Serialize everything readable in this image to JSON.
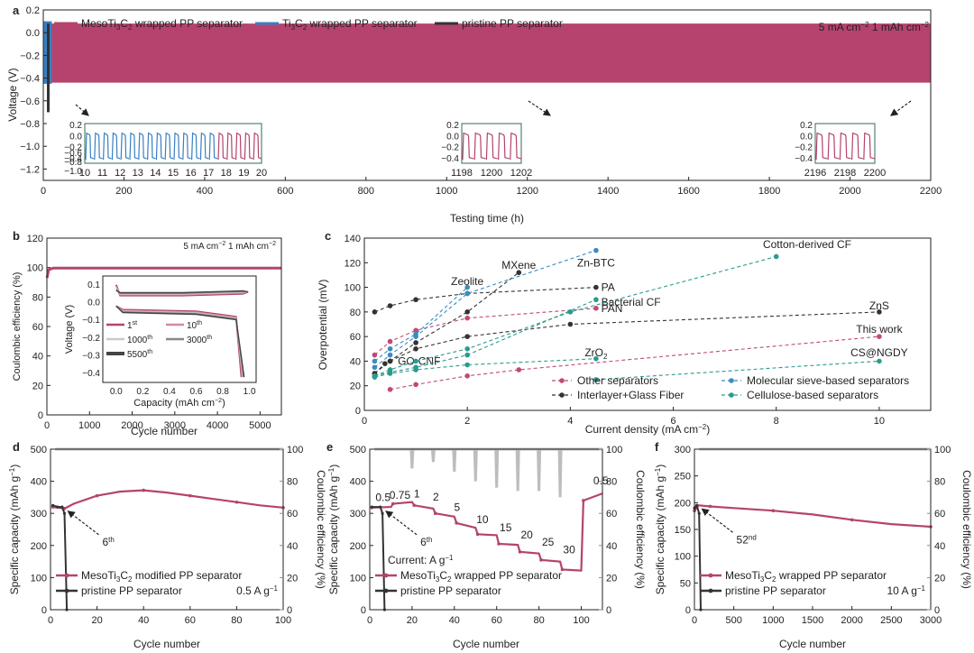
{
  "chart_data": [
    {
      "panel": "a",
      "type": "line",
      "xlabel": "Testing time (h)",
      "ylabel": "Voltage (V)",
      "xlim": [
        0,
        2200
      ],
      "ylim": [
        -1.3,
        0.2
      ],
      "xticks": [
        "0",
        "200",
        "400",
        "600",
        "800",
        "1000",
        "1200",
        "1400",
        "1600",
        "1800",
        "2000",
        "2200"
      ],
      "yticks": [
        "-1.2",
        "-1.0",
        "-0.8",
        "-0.6",
        "-0.4",
        "-0.2",
        "0.0",
        "0.2"
      ],
      "legend": [
        "MesoTi3C2 wrapped  PP separator",
        "Ti3C2 wrapped  PP separator",
        "pristine PP separator"
      ],
      "condition": "5 mA cm-2  1 mAh cm-2",
      "series": [
        {
          "name": "MesoTi3C2 wrapped  PP separator",
          "color": "#b5436e",
          "x_range": [
            20,
            2200
          ],
          "upper": 0.08,
          "lower": -0.44
        },
        {
          "name": "Ti3C2 wrapped  PP separator",
          "color": "#3a7fc1",
          "x_range": [
            0,
            20
          ],
          "upper": 0.1,
          "lower": -0.45
        },
        {
          "name": "pristine PP separator",
          "color": "#333333",
          "x_range": [
            0,
            10
          ],
          "upper": 0.08,
          "lower": -0.7
        }
      ],
      "insets": [
        {
          "xticks": [
            "10",
            "11",
            "12",
            "13",
            "14",
            "15",
            "16",
            "17",
            "18",
            "19",
            "20"
          ],
          "yticks": [
            "0.2",
            "0.0",
            "-0.2",
            "-0.4",
            "-0.6",
            "-0.8",
            "-1.0"
          ],
          "xlim": [
            10,
            20
          ],
          "blue_until": 17.5,
          "cycles": 20
        },
        {
          "xticks": [
            "1198",
            "1200",
            "1202"
          ],
          "yticks": [
            "0.2",
            "0.0",
            "-0.2",
            "-0.4"
          ],
          "xlim": [
            1197.5,
            1202
          ],
          "cycles": 5
        },
        {
          "xticks": [
            "2196",
            "2198",
            "2200"
          ],
          "yticks": [
            "0.2",
            "0.0",
            "-0.2",
            "-0.4"
          ],
          "xlim": [
            2195.5,
            2200
          ],
          "cycles": 5
        }
      ]
    },
    {
      "panel": "b",
      "type": "scatter",
      "xlabel": "Cycle number",
      "ylabel": "Coulombic efficiency (%)",
      "xlim": [
        0,
        5500
      ],
      "ylim": [
        0,
        120
      ],
      "xticks": [
        "0",
        "1000",
        "2000",
        "3000",
        "4000",
        "5000"
      ],
      "yticks": [
        "0",
        "20",
        "40",
        "60",
        "80",
        "100",
        "120"
      ],
      "condition": "5 mA cm-2 1 mAh cm-2",
      "values": {
        "ce": 99.7
      },
      "inset": {
        "xlabel": "Capacity (mAh cm-2)",
        "ylabel": "Voltage (V)",
        "xticks": [
          "0.0",
          "0.2",
          "0.4",
          "0.6",
          "0.8",
          "1.0"
        ],
        "yticks": [
          "0.1",
          "0.0",
          "-0.1",
          "-0.2",
          "-0.3",
          "-0.4"
        ],
        "legend": [
          "1st",
          "10th",
          "1000th",
          "3000th",
          "5500th"
        ],
        "legend_colors": [
          "#b5436e",
          "#d58aa4",
          "#c9c9c9",
          "#888888",
          "#444444"
        ]
      }
    },
    {
      "panel": "c",
      "type": "scatter",
      "xlabel": "Current density (mA cm-2)",
      "ylabel": "Overpotential (mV)",
      "xlim": [
        0,
        11
      ],
      "ylim": [
        0,
        140
      ],
      "xticks": [
        "0",
        "2",
        "4",
        "6",
        "8",
        "10"
      ],
      "yticks": [
        "0",
        "20",
        "40",
        "60",
        "80",
        "100",
        "120",
        "140"
      ],
      "legend": [
        "Other separators",
        "Interlayer+Glass Fiber",
        "Molecular sieve-based separators",
        "Cellulose-based separators"
      ],
      "series": [
        {
          "group": "Other separators",
          "label": "PAN",
          "color": "#c04a74",
          "x": [
            0.2,
            0.5,
            1,
            2,
            4.5
          ],
          "y": [
            45,
            56,
            65,
            75,
            83
          ]
        },
        {
          "group": "Other separators",
          "label": "This work",
          "color": "#c04a74",
          "x": [
            0.5,
            1,
            2,
            3,
            10
          ],
          "y": [
            17,
            21,
            28,
            33,
            60
          ]
        },
        {
          "group": "Interlayer+Glass Fiber",
          "label": "MXene",
          "color": "#333333",
          "x": [
            0.2,
            0.5,
            1,
            2,
            3
          ],
          "y": [
            30,
            40,
            55,
            80,
            112
          ]
        },
        {
          "group": "Interlayer+Glass Fiber",
          "label": "PA",
          "color": "#333333",
          "x": [
            0.2,
            0.5,
            1,
            2,
            4.5
          ],
          "y": [
            80,
            85,
            90,
            95,
            100
          ]
        },
        {
          "group": "Interlayer+Glass Fiber",
          "label": "GO-CNF",
          "color": "#333333",
          "x": [
            0.2,
            0.4,
            0.5
          ],
          "y": [
            30,
            38,
            40
          ]
        },
        {
          "group": "Interlayer+Glass Fiber",
          "label": "ZnS",
          "color": "#333333",
          "x": [
            0.5,
            1,
            2,
            4,
            10
          ],
          "y": [
            40,
            50,
            60,
            70,
            80
          ]
        },
        {
          "group": "Molecular sieve-based separators",
          "label": "Zeolite",
          "color": "#3a8cc0",
          "x": [
            0.2,
            0.5,
            1,
            2
          ],
          "y": [
            40,
            50,
            62,
            100
          ]
        },
        {
          "group": "Molecular sieve-based separators",
          "label": "Zn-BTC",
          "color": "#3a8cc0",
          "x": [
            0.2,
            0.5,
            1,
            2,
            4.5
          ],
          "y": [
            35,
            45,
            60,
            95,
            130
          ]
        },
        {
          "group": "Cellulose-based separators",
          "label": "Cotton-derived CF",
          "color": "#2a9a8e",
          "x": [
            0.2,
            0.5,
            1,
            2,
            4,
            8
          ],
          "y": [
            28,
            33,
            40,
            50,
            80,
            125
          ]
        },
        {
          "group": "Cellulose-based separators",
          "label": "Bacterial CF",
          "color": "#2a9a8e",
          "x": [
            0.2,
            0.5,
            1,
            2,
            4.5
          ],
          "y": [
            28,
            31,
            35,
            45,
            90
          ]
        },
        {
          "group": "Cellulose-based separators",
          "label": "ZrO2",
          "color": "#2a9a8e",
          "x": [
            0.2,
            0.5,
            1,
            2,
            4.5
          ],
          "y": [
            27,
            30,
            33,
            37,
            42
          ]
        },
        {
          "group": "Cellulose-based separators",
          "label": "CS@NGDY",
          "color": "#2a9a8e",
          "x": [
            4.5,
            10
          ],
          "y": [
            25,
            40
          ]
        }
      ]
    },
    {
      "panel": "d",
      "type": "line",
      "xlabel": "Cycle number",
      "ylabel": "Specific capacity (mAh g-1)",
      "y2label": "Coulombic efficiency (%)",
      "xlim": [
        0,
        100
      ],
      "ylim": [
        0,
        500
      ],
      "y2lim": [
        0,
        100
      ],
      "xticks": [
        "0",
        "20",
        "40",
        "60",
        "80",
        "100"
      ],
      "yticks": [
        "0",
        "100",
        "200",
        "300",
        "400",
        "500"
      ],
      "y2ticks": [
        "0",
        "20",
        "40",
        "60",
        "80",
        "100"
      ],
      "annotation": "6th",
      "rate_label": "0.5 A g-1",
      "legend": [
        "MesoTi3C2 modified PP separator",
        "pristine PP separator"
      ],
      "series": [
        {
          "name": "MesoTi3C2 modified PP separator",
          "color": "#b5436e",
          "x": [
            1,
            3,
            6,
            10,
            20,
            30,
            40,
            50,
            60,
            70,
            80,
            90,
            100
          ],
          "y": [
            320,
            318,
            315,
            330,
            355,
            368,
            372,
            365,
            355,
            345,
            335,
            325,
            318
          ]
        },
        {
          "name": "pristine PP separator",
          "color": "#333333",
          "x": [
            1,
            3,
            5,
            6,
            7
          ],
          "y": [
            325,
            320,
            320,
            300,
            0
          ]
        },
        {
          "name": "Coulombic efficiency",
          "color": "#bdbdbd",
          "axis": "y2",
          "x": [
            1,
            100
          ],
          "y": [
            100,
            100
          ]
        }
      ]
    },
    {
      "panel": "e",
      "type": "line",
      "xlabel": "Cycle number",
      "ylabel": "Specific capacity (mAh g-1)",
      "y2label": "Coulombic efficiency (%)",
      "xlim": [
        0,
        110
      ],
      "ylim": [
        0,
        500
      ],
      "y2lim": [
        0,
        100
      ],
      "xticks": [
        "0",
        "20",
        "40",
        "60",
        "80",
        "100"
      ],
      "yticks": [
        "0",
        "100",
        "200",
        "300",
        "400",
        "500"
      ],
      "y2ticks": [
        "0",
        "20",
        "40",
        "60",
        "80",
        "100"
      ],
      "annotation": "6th",
      "current_label": "Current: A g-1",
      "rate_labels": [
        "0.5",
        "0.75",
        "1",
        "2",
        "5",
        "10",
        "15",
        "20",
        "25",
        "30",
        "0.5"
      ],
      "legend": [
        "MesoTi3C2 wrapped PP separator",
        "pristine PP separator"
      ],
      "series": [
        {
          "name": "MesoTi3C2 wrapped PP separator",
          "color": "#b5436e",
          "x": [
            1,
            10,
            11,
            20,
            21,
            30,
            31,
            40,
            41,
            50,
            51,
            60,
            61,
            70,
            71,
            80,
            81,
            90,
            91,
            100,
            101,
            110
          ],
          "y": [
            318,
            320,
            330,
            335,
            325,
            315,
            300,
            290,
            270,
            255,
            235,
            232,
            205,
            202,
            180,
            175,
            155,
            150,
            125,
            122,
            340,
            362
          ]
        },
        {
          "name": "pristine PP separator",
          "color": "#333333",
          "x": [
            1,
            5,
            6,
            7
          ],
          "y": [
            320,
            320,
            300,
            0
          ]
        },
        {
          "name": "Coulombic efficiency",
          "color": "#bdbdbd",
          "axis": "y2",
          "x": [
            1,
            110
          ],
          "y": [
            100,
            100
          ]
        }
      ]
    },
    {
      "panel": "f",
      "type": "line",
      "xlabel": "Cycle number",
      "ylabel": "Specific capacity (mAh g-1)",
      "y2label": "Coulombic efficiency (%)",
      "xlim": [
        0,
        3000
      ],
      "ylim": [
        0,
        300
      ],
      "y2lim": [
        0,
        100
      ],
      "xticks": [
        "0",
        "500",
        "1000",
        "1500",
        "2000",
        "2500",
        "3000"
      ],
      "yticks": [
        "0",
        "50",
        "100",
        "150",
        "200",
        "250",
        "300"
      ],
      "y2ticks": [
        "0",
        "20",
        "40",
        "60",
        "80",
        "100"
      ],
      "annotation": "52nd",
      "rate_label": "10 A g-1",
      "legend": [
        "MesoTi3C2 wrapped PP separator",
        "pristine PP separator"
      ],
      "series": [
        {
          "name": "MesoTi3C2 wrapped PP separator",
          "color": "#b5436e",
          "x": [
            1,
            52,
            200,
            500,
            1000,
            1500,
            2000,
            2500,
            3000
          ],
          "y": [
            185,
            195,
            193,
            190,
            185,
            178,
            168,
            160,
            155
          ]
        },
        {
          "name": "pristine PP separator",
          "color": "#333333",
          "x": [
            1,
            30,
            60,
            80
          ],
          "y": [
            190,
            195,
            180,
            0
          ]
        },
        {
          "name": "Coulombic efficiency",
          "color": "#bdbdbd",
          "axis": "y2",
          "x": [
            1,
            3000
          ],
          "y": [
            100,
            100
          ]
        }
      ]
    }
  ],
  "panels": {
    "a": "a",
    "b": "b",
    "c": "c",
    "d": "d",
    "e": "e",
    "f": "f"
  }
}
